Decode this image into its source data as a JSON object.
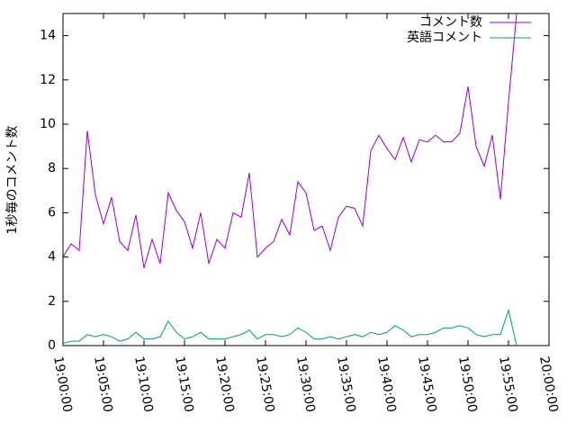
{
  "chart_data": {
    "type": "line",
    "y_label": "1秒毎のコメント数",
    "x": [
      "19:00:00",
      "19:01:00",
      "19:02:00",
      "19:03:00",
      "19:04:00",
      "19:05:00",
      "19:06:00",
      "19:07:00",
      "19:08:00",
      "19:09:00",
      "19:10:00",
      "19:11:00",
      "19:12:00",
      "19:13:00",
      "19:14:00",
      "19:15:00",
      "19:16:00",
      "19:17:00",
      "19:18:00",
      "19:19:00",
      "19:20:00",
      "19:21:00",
      "19:22:00",
      "19:23:00",
      "19:24:00",
      "19:25:00",
      "19:26:00",
      "19:27:00",
      "19:28:00",
      "19:29:00",
      "19:30:00",
      "19:31:00",
      "19:32:00",
      "19:33:00",
      "19:34:00",
      "19:35:00",
      "19:36:00",
      "19:37:00",
      "19:38:00",
      "19:39:00",
      "19:40:00",
      "19:41:00",
      "19:42:00",
      "19:43:00",
      "19:44:00",
      "19:45:00",
      "19:46:00",
      "19:47:00",
      "19:48:00",
      "19:49:00",
      "19:50:00",
      "19:51:00",
      "19:52:00",
      "19:53:00",
      "19:54:00",
      "19:55:00",
      "19:56:00"
    ],
    "series": [
      {
        "name": "コメント数",
        "color": "#9400d3",
        "values": [
          4.0,
          4.6,
          4.3,
          9.7,
          6.8,
          5.5,
          6.7,
          4.7,
          4.3,
          5.9,
          3.5,
          4.8,
          3.7,
          6.9,
          6.1,
          5.6,
          4.4,
          6.0,
          3.7,
          4.8,
          4.4,
          6.0,
          5.8,
          7.8,
          4.0,
          4.4,
          4.7,
          5.7,
          5.0,
          7.4,
          6.9,
          5.2,
          5.4,
          4.3,
          5.8,
          6.3,
          6.2,
          5.4,
          8.8,
          9.5,
          8.9,
          8.4,
          9.4,
          8.3,
          9.3,
          9.2,
          9.5,
          9.2,
          9.2,
          9.6,
          11.7,
          9.0,
          8.1,
          9.5,
          6.6,
          11.0,
          15
        ]
      },
      {
        "name": "英語コメント",
        "color": "#009e73",
        "values": [
          0.1,
          0.2,
          0.2,
          0.5,
          0.4,
          0.5,
          0.4,
          0.2,
          0.3,
          0.6,
          0.3,
          0.3,
          0.4,
          1.1,
          0.6,
          0.3,
          0.4,
          0.6,
          0.3,
          0.3,
          0.3,
          0.4,
          0.5,
          0.7,
          0.3,
          0.5,
          0.5,
          0.4,
          0.5,
          0.8,
          0.6,
          0.3,
          0.3,
          0.4,
          0.3,
          0.4,
          0.5,
          0.4,
          0.6,
          0.5,
          0.6,
          0.9,
          0.7,
          0.4,
          0.5,
          0.5,
          0.6,
          0.8,
          0.8,
          0.9,
          0.8,
          0.5,
          0.4,
          0.5,
          0.5,
          1.6,
          0
        ]
      }
    ],
    "xlim": [
      "19:00:00",
      "20:00:00"
    ],
    "xticks": [
      "19:00:00",
      "19:05:00",
      "19:10:00",
      "19:15:00",
      "19:20:00",
      "19:25:00",
      "19:30:00",
      "19:35:00",
      "19:40:00",
      "19:45:00",
      "19:50:00",
      "19:55:00",
      "20:00:00"
    ],
    "ylim": [
      0,
      15
    ],
    "yticks": [
      0,
      2,
      4,
      6,
      8,
      10,
      12,
      14
    ],
    "legend": "top-right"
  }
}
